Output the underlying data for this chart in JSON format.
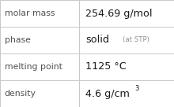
{
  "rows": [
    {
      "label": "molar mass",
      "value": "254.69 g/mol",
      "type": "plain"
    },
    {
      "label": "phase",
      "value": "solid",
      "value_suffix": "(at STP)",
      "type": "phase"
    },
    {
      "label": "melting point",
      "value": "1125 °C",
      "type": "plain"
    },
    {
      "label": "density",
      "value": "4.6 g/cm",
      "superscript": "3",
      "type": "super"
    }
  ],
  "col_split": 0.455,
  "background_color": "#ffffff",
  "border_color": "#c8c8c8",
  "label_color": "#505050",
  "value_color": "#1a1a1a",
  "suffix_color": "#909090",
  "label_fontsize": 7.8,
  "value_fontsize": 9.2,
  "suffix_fontsize": 6.2,
  "super_fontsize": 6.0,
  "fig_width": 2.2,
  "fig_height": 1.36,
  "dpi": 100
}
